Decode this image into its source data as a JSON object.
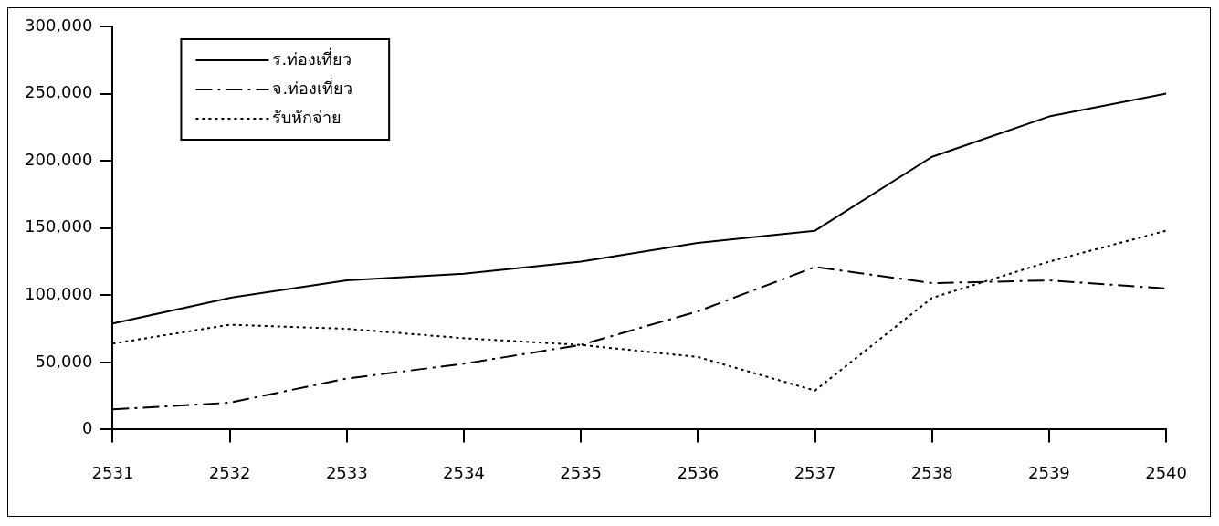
{
  "chart_data": {
    "type": "line",
    "categories": [
      "2531",
      "2532",
      "2533",
      "2534",
      "2535",
      "2536",
      "2537",
      "2538",
      "2539",
      "2540"
    ],
    "series": [
      {
        "name": "ร.ท่องเที่ยว",
        "color": "#000000",
        "line_style": "solid",
        "values": [
          79000,
          98000,
          111000,
          116000,
          125000,
          139000,
          148000,
          203000,
          233000,
          250000
        ]
      },
      {
        "name": "จ.ท่องเที่ยว",
        "color": "#000000",
        "line_style": "dashed",
        "values": [
          15000,
          20000,
          38000,
          49000,
          63000,
          88000,
          121000,
          109000,
          111000,
          105000
        ]
      },
      {
        "name": "รับหักจ่าย",
        "color": "#000000",
        "line_style": "dotted",
        "values": [
          64000,
          78000,
          75000,
          68000,
          63000,
          54000,
          29000,
          98000,
          125000,
          148000
        ]
      }
    ],
    "ylim": [
      0,
      300000
    ],
    "yticks": [
      0,
      {
        "value": 50000,
        "label": "50,000"
      },
      {
        "value": 100000,
        "label": "100,000"
      },
      {
        "value": 150000,
        "label": "150,000"
      },
      {
        "value": 200000,
        "label": "200,000"
      },
      {
        "value": 250000,
        "label": "250,000"
      },
      {
        "value": 300000,
        "label": "300,000"
      }
    ],
    "grid": false,
    "legend": "top left",
    "marker": "none"
  }
}
